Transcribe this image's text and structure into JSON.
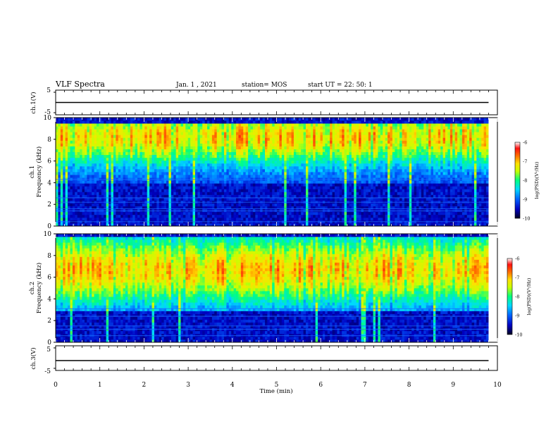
{
  "header": {
    "title": "VLF Spectra",
    "date": "Jan. 1 , 2021",
    "station": "station= MOS",
    "start": "start UT = 22: 50: 1"
  },
  "colors": {
    "scale": [
      "#000020",
      "#0000c0",
      "#0060ff",
      "#00d8ff",
      "#00ff80",
      "#c8ff00",
      "#ffe000",
      "#ff7000",
      "#ff1010",
      "#ffffff"
    ]
  },
  "chart_data": [
    {
      "type": "line",
      "panel": "waveform_ch1",
      "ylabel": "ch.1(V)",
      "ylim": [
        -5,
        5
      ],
      "yticks": [
        "5",
        "-5"
      ],
      "series": [
        {
          "values": [
            0,
            0
          ]
        }
      ],
      "x": [
        0,
        9.8
      ]
    },
    {
      "type": "heatmap",
      "panel": "spectrogram_ch1",
      "ylabel": "ch.1 Frequency (kHz)",
      "ylim": [
        0,
        10
      ],
      "yticks": [
        "0",
        "2",
        "4",
        "6",
        "8",
        "10"
      ],
      "xlim": [
        0,
        9.8
      ],
      "band": {
        "low_khz": 4.0,
        "high_khz": 9.5,
        "peak_khz": 8.2
      },
      "colorbar": {
        "label": "log(PSD)(V²/Hz)",
        "range": [
          -10,
          -6
        ],
        "ticks": [
          "-6",
          "-7",
          "-8",
          "-9",
          "-10"
        ]
      }
    },
    {
      "type": "heatmap",
      "panel": "spectrogram_ch2",
      "ylabel": "ch.2 Frequency (kHz)",
      "ylim": [
        0,
        10
      ],
      "yticks": [
        "0",
        "2",
        "4",
        "6",
        "8",
        "10"
      ],
      "xlim": [
        0,
        9.8
      ],
      "band": {
        "low_khz": 3.0,
        "high_khz": 9.8,
        "peak_khz": 6.7
      },
      "colorbar": {
        "label": "log(PSD)(V²/Hz)",
        "range": [
          -10,
          -6
        ],
        "ticks": [
          "-6",
          "-7",
          "-8",
          "-9",
          "-10"
        ]
      }
    },
    {
      "type": "line",
      "panel": "waveform_ch3",
      "ylabel": "ch.3(V)",
      "ylim": [
        -5,
        5
      ],
      "yticks": [
        "5",
        "-5"
      ],
      "series": [
        {
          "values": [
            -1,
            -1
          ]
        }
      ],
      "x": [
        0,
        9.8
      ],
      "xlabel": "Time (min)",
      "xticks": [
        "0",
        "1",
        "2",
        "3",
        "4",
        "5",
        "6",
        "7",
        "8",
        "9",
        "10"
      ],
      "xlim": [
        0,
        10
      ]
    }
  ]
}
